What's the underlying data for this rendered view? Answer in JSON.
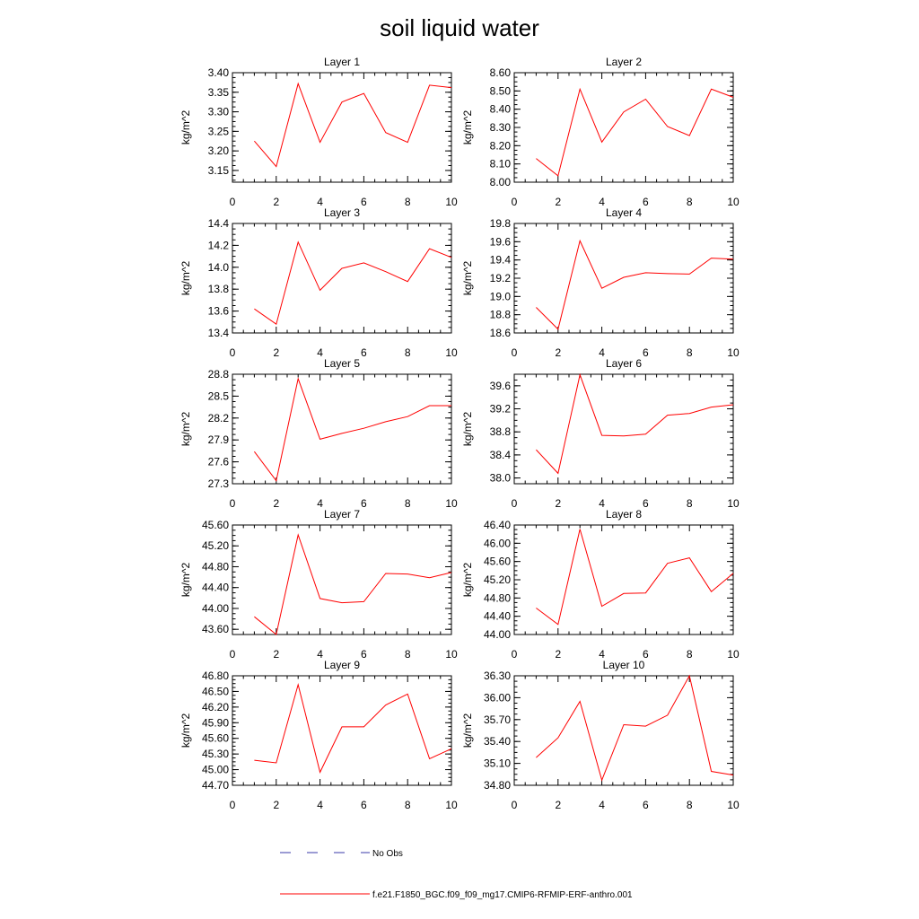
{
  "figure": {
    "title": "soil liquid water",
    "legend": [
      {
        "label": "No Obs",
        "color": "#3a3aa8",
        "style": "dashed"
      },
      {
        "label": "f.e21.F1850_BGC.f09_f09_mg17.CMIP6-RFMIP-ERF-anthro.001",
        "color": "#ff0000",
        "style": "solid"
      }
    ],
    "legend_placement": "bottom-center"
  },
  "chart_data": [
    {
      "type": "line",
      "title": "Layer 1",
      "ylabel": "kg/m^2",
      "xlim": [
        0,
        10
      ],
      "ylim": [
        3.12,
        3.4
      ],
      "xticks": [
        "0",
        "2",
        "4",
        "6",
        "8",
        "10"
      ],
      "yticks": [
        "3.15",
        "3.20",
        "3.25",
        "3.30",
        "3.35",
        "3.40"
      ],
      "series": [
        {
          "color": "#ff0000",
          "x": [
            1,
            2,
            3,
            4,
            5,
            6,
            7,
            8,
            9,
            10
          ],
          "values": [
            3.225,
            3.16,
            3.372,
            3.222,
            3.325,
            3.347,
            3.247,
            3.222,
            3.368,
            3.362
          ]
        }
      ]
    },
    {
      "type": "line",
      "title": "Layer 2",
      "ylabel": "kg/m^2",
      "xlim": [
        0,
        10
      ],
      "ylim": [
        8.0,
        8.6
      ],
      "xticks": [
        "0",
        "2",
        "4",
        "6",
        "8",
        "10"
      ],
      "yticks": [
        "8.00",
        "8.10",
        "8.20",
        "8.30",
        "8.40",
        "8.50",
        "8.60"
      ],
      "series": [
        {
          "color": "#ff0000",
          "x": [
            1,
            2,
            3,
            4,
            5,
            6,
            7,
            8,
            9,
            10
          ],
          "values": [
            8.13,
            8.035,
            8.51,
            8.22,
            8.385,
            8.455,
            8.305,
            8.255,
            8.51,
            8.465
          ]
        }
      ]
    },
    {
      "type": "line",
      "title": "Layer 3",
      "ylabel": "kg/m^2",
      "xlim": [
        0,
        10
      ],
      "ylim": [
        13.4,
        14.4
      ],
      "xticks": [
        "0",
        "2",
        "4",
        "6",
        "8",
        "10"
      ],
      "yticks": [
        "13.4",
        "13.6",
        "13.8",
        "14.0",
        "14.2",
        "14.4"
      ],
      "series": [
        {
          "color": "#ff0000",
          "x": [
            1,
            2,
            3,
            4,
            5,
            6,
            7,
            8,
            9,
            10
          ],
          "values": [
            13.62,
            13.48,
            14.23,
            13.79,
            13.99,
            14.04,
            13.96,
            13.87,
            14.17,
            14.09
          ]
        }
      ]
    },
    {
      "type": "line",
      "title": "Layer 4",
      "ylabel": "kg/m^2",
      "xlim": [
        0,
        10
      ],
      "ylim": [
        18.6,
        19.8
      ],
      "xticks": [
        "0",
        "2",
        "4",
        "6",
        "8",
        "10"
      ],
      "yticks": [
        "18.6",
        "18.8",
        "19.0",
        "19.2",
        "19.4",
        "19.6",
        "19.8"
      ],
      "series": [
        {
          "color": "#ff0000",
          "x": [
            1,
            2,
            3,
            4,
            5,
            6,
            7,
            8,
            9,
            10
          ],
          "values": [
            18.88,
            18.64,
            19.61,
            19.09,
            19.21,
            19.26,
            19.25,
            19.245,
            19.42,
            19.41
          ]
        }
      ]
    },
    {
      "type": "line",
      "title": "Layer 5",
      "ylabel": "kg/m^2",
      "xlim": [
        0,
        10
      ],
      "ylim": [
        27.3,
        28.8
      ],
      "xticks": [
        "0",
        "2",
        "4",
        "6",
        "8",
        "10"
      ],
      "yticks": [
        "27.3",
        "27.6",
        "27.9",
        "28.2",
        "28.5",
        "28.8"
      ],
      "series": [
        {
          "color": "#ff0000",
          "x": [
            1,
            2,
            3,
            4,
            5,
            6,
            7,
            8,
            9,
            10
          ],
          "values": [
            27.74,
            27.34,
            28.74,
            27.91,
            27.99,
            28.06,
            28.15,
            28.22,
            28.37,
            28.37
          ]
        }
      ]
    },
    {
      "type": "line",
      "title": "Layer 6",
      "ylabel": "kg/m^2",
      "xlim": [
        0,
        10
      ],
      "ylim": [
        37.9,
        39.8
      ],
      "xticks": [
        "0",
        "2",
        "4",
        "6",
        "8",
        "10"
      ],
      "yticks": [
        "38.0",
        "38.4",
        "38.8",
        "39.2",
        "39.6"
      ],
      "series": [
        {
          "color": "#ff0000",
          "x": [
            1,
            2,
            3,
            4,
            5,
            6,
            7,
            8,
            9,
            10
          ],
          "values": [
            38.49,
            38.08,
            39.79,
            38.74,
            38.73,
            38.76,
            39.09,
            39.12,
            39.23,
            39.27
          ]
        }
      ]
    },
    {
      "type": "line",
      "title": "Layer 7",
      "ylabel": "kg/m^2",
      "xlim": [
        0,
        10
      ],
      "ylim": [
        43.5,
        45.6
      ],
      "xticks": [
        "0",
        "2",
        "4",
        "6",
        "8",
        "10"
      ],
      "yticks": [
        "43.60",
        "44.00",
        "44.40",
        "44.80",
        "45.20",
        "45.60"
      ],
      "series": [
        {
          "color": "#ff0000",
          "x": [
            1,
            2,
            3,
            4,
            5,
            6,
            7,
            8,
            9,
            10
          ],
          "values": [
            43.84,
            43.5,
            45.41,
            44.19,
            44.11,
            44.13,
            44.67,
            44.66,
            44.59,
            44.69
          ]
        }
      ]
    },
    {
      "type": "line",
      "title": "Layer 8",
      "ylabel": "kg/m^2",
      "xlim": [
        0,
        10
      ],
      "ylim": [
        44.0,
        46.4
      ],
      "xticks": [
        "0",
        "2",
        "4",
        "6",
        "8",
        "10"
      ],
      "yticks": [
        "44.00",
        "44.40",
        "44.80",
        "45.20",
        "45.60",
        "46.00",
        "46.40"
      ],
      "series": [
        {
          "color": "#ff0000",
          "x": [
            1,
            2,
            3,
            4,
            5,
            6,
            7,
            8,
            9,
            10
          ],
          "values": [
            44.58,
            44.22,
            46.31,
            44.62,
            44.9,
            44.91,
            45.56,
            45.68,
            44.94,
            45.34
          ]
        }
      ]
    },
    {
      "type": "line",
      "title": "Layer 9",
      "ylabel": "kg/m^2",
      "xlim": [
        0,
        10
      ],
      "ylim": [
        44.7,
        46.8
      ],
      "xticks": [
        "0",
        "2",
        "4",
        "6",
        "8",
        "10"
      ],
      "yticks": [
        "44.70",
        "45.00",
        "45.30",
        "45.60",
        "45.90",
        "46.20",
        "46.50",
        "46.80"
      ],
      "series": [
        {
          "color": "#ff0000",
          "x": [
            1,
            2,
            3,
            4,
            5,
            6,
            7,
            8,
            9,
            10
          ],
          "values": [
            45.18,
            45.13,
            46.63,
            44.95,
            45.82,
            45.82,
            46.24,
            46.45,
            45.21,
            45.4
          ]
        }
      ]
    },
    {
      "type": "line",
      "title": "Layer 10",
      "ylabel": "kg/m^2",
      "xlim": [
        0,
        10
      ],
      "ylim": [
        34.8,
        36.3
      ],
      "xticks": [
        "0",
        "2",
        "4",
        "6",
        "8",
        "10"
      ],
      "yticks": [
        "34.80",
        "35.10",
        "35.40",
        "35.70",
        "36.00",
        "36.30"
      ],
      "series": [
        {
          "color": "#ff0000",
          "x": [
            1,
            2,
            3,
            4,
            5,
            6,
            7,
            8,
            9,
            10
          ],
          "values": [
            35.18,
            35.45,
            35.95,
            34.87,
            35.63,
            35.61,
            35.76,
            36.3,
            34.99,
            34.94
          ]
        }
      ]
    }
  ]
}
